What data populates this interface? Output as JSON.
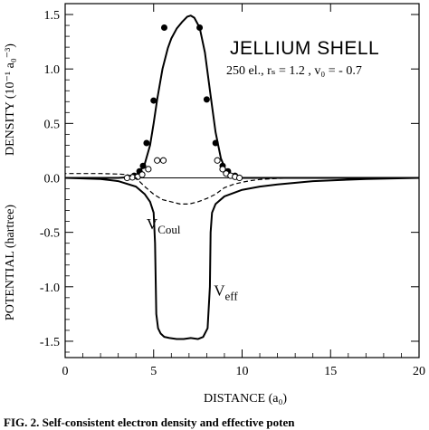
{
  "chart_data": {
    "type": "line",
    "title": "JELLIUM SHELL",
    "subtitle": "250 el., rₛ = 1.2 ,  v₀ = - 0.7",
    "xlabel": "DISTANCE  (a₀)",
    "ylabel_top": "DENSITY (10⁻¹ a₀⁻³)",
    "ylabel_bottom": "POTENTIAL  (hartree)",
    "xlim": [
      0,
      20
    ],
    "ylim": [
      -1.65,
      1.6
    ],
    "x_ticks": [
      0,
      5,
      10,
      15,
      20
    ],
    "x_tick_labels": [
      "0",
      "5",
      "10",
      "15",
      "20"
    ],
    "y_ticks": [
      -1.5,
      -1.0,
      -0.5,
      0.0,
      0.5,
      1.0,
      1.5
    ],
    "y_tick_labels": [
      "-1.5",
      "-1.0",
      "-0.5",
      "0.0",
      "0.5",
      "1.0",
      "1.5"
    ],
    "caption": "FIG. 2. Self-consistent electron density and effective poten",
    "annotations": [
      {
        "text": "V",
        "sub": "Coul",
        "x": 4.6,
        "y": -0.47
      },
      {
        "text": "V",
        "sub": "eff",
        "x": 8.4,
        "y": -1.08
      }
    ],
    "series": [
      {
        "style": "solid",
        "x": [
          0,
          2,
          3,
          3.5,
          3.9,
          4.2,
          4.5,
          4.8,
          5.0,
          5.2,
          5.5,
          5.8,
          6.0,
          6.3,
          6.6,
          6.9,
          7.1,
          7.3,
          7.6,
          7.9,
          8.2,
          8.5,
          8.8,
          9.1,
          9.4,
          9.7,
          10,
          11,
          20
        ],
        "y": [
          0,
          0,
          0,
          0.005,
          0.02,
          0.05,
          0.13,
          0.3,
          0.5,
          0.72,
          1.0,
          1.19,
          1.28,
          1.37,
          1.43,
          1.48,
          1.49,
          1.47,
          1.38,
          1.15,
          0.78,
          0.42,
          0.18,
          0.06,
          0.02,
          0.005,
          0,
          0,
          0
        ]
      },
      {
        "style": "filled-dots",
        "x": [
          3.9,
          4.2,
          4.4,
          4.6,
          5.0,
          5.6,
          7.6,
          8.0,
          8.5,
          8.9,
          9.2,
          9.6
        ],
        "y": [
          0.02,
          0.06,
          0.11,
          0.32,
          0.71,
          1.38,
          1.38,
          0.72,
          0.32,
          0.11,
          0.06,
          0.02
        ]
      },
      {
        "style": "open-dots",
        "x": [
          3.5,
          3.8,
          4.1,
          4.35,
          4.7,
          5.2,
          5.55,
          8.6,
          8.9,
          9.1,
          9.35,
          9.6,
          9.85
        ],
        "y": [
          0.0,
          0.005,
          0.01,
          0.03,
          0.08,
          0.16,
          0.16,
          0.16,
          0.08,
          0.04,
          0.02,
          0.01,
          0.0
        ]
      },
      {
        "style": "dashed",
        "x": [
          -1,
          1,
          2,
          3,
          3.5,
          4,
          4.5,
          5,
          5.5,
          6,
          6.5,
          7,
          7.5,
          8,
          8.5,
          9,
          9.5,
          10,
          10.5,
          11,
          12,
          13
        ],
        "y": [
          0.04,
          0.04,
          0.04,
          0.035,
          0.03,
          0.0,
          -0.08,
          -0.15,
          -0.2,
          -0.22,
          -0.24,
          -0.24,
          -0.22,
          -0.19,
          -0.15,
          -0.09,
          -0.06,
          -0.04,
          -0.025,
          -0.015,
          -0.005,
          0
        ]
      },
      {
        "style": "solid",
        "x": [
          0,
          2,
          3,
          4,
          4.5,
          4.8,
          5.0,
          5.08,
          5.15,
          5.25,
          5.4,
          5.6,
          5.9,
          6.3,
          6.7,
          7.1,
          7.5,
          7.8,
          8.05,
          8.18,
          8.22,
          8.3,
          8.5,
          9,
          10,
          11,
          12,
          14,
          17,
          20
        ],
        "y": [
          0,
          -0.01,
          -0.03,
          -0.08,
          -0.15,
          -0.22,
          -0.32,
          -0.6,
          -1.25,
          -1.38,
          -1.43,
          -1.46,
          -1.47,
          -1.48,
          -1.48,
          -1.47,
          -1.48,
          -1.46,
          -1.38,
          -1.0,
          -0.5,
          -0.32,
          -0.24,
          -0.17,
          -0.11,
          -0.08,
          -0.06,
          -0.03,
          -0.01,
          0
        ]
      }
    ]
  }
}
